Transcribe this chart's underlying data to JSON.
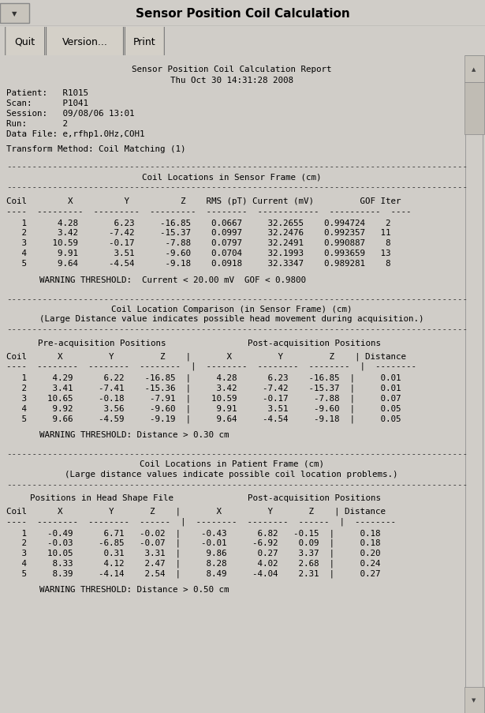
{
  "title": "Sensor Position Coil Calculation",
  "bg_color": "#d0cdc8",
  "content_bg": "#fffff0",
  "report_title": "Sensor Position Coil Calculation Report",
  "report_date": "Thu Oct 30 14:31:28 2008",
  "patient": "R1015",
  "scan": "P1041",
  "session": "09/08/06 13:01",
  "run": "2",
  "data_file": "e,rfhp1.0Hz,COH1",
  "transform_method": "Coil Matching (1)",
  "section1_title": "Coil Locations in Sensor Frame (cm)",
  "coil_data1": [
    [
      "1",
      "4.28",
      "6.23",
      "-16.85",
      "0.0667",
      "32.2655",
      "0.994724",
      "2"
    ],
    [
      "2",
      "3.42",
      "-7.42",
      "-15.37",
      "0.0997",
      "32.2476",
      "0.992357",
      "11"
    ],
    [
      "3",
      "10.59",
      "-0.17",
      "-7.88",
      "0.0797",
      "32.2491",
      "0.990887",
      "8"
    ],
    [
      "4",
      "9.91",
      "3.51",
      "-9.60",
      "0.0704",
      "32.1993",
      "0.993659",
      "13"
    ],
    [
      "5",
      "9.64",
      "-4.54",
      "-9.18",
      "0.0918",
      "32.3347",
      "0.989281",
      "8"
    ]
  ],
  "warning1": "WARNING THRESHOLD:  Current < 20.00 mV  GOF < 0.9800",
  "section2_title": "Coil Location Comparison (in Sensor Frame) (cm)",
  "section2_subtitle": "(Large Distance value indicates possible head movement during acquisition.)",
  "pre_header": "Pre-acquisition Positions",
  "post_header": "Post-acquisition Positions",
  "coil_data2": [
    [
      "1",
      "4.29",
      "6.22",
      "-16.85",
      "4.28",
      "6.23",
      "-16.85",
      "0.01"
    ],
    [
      "2",
      "3.41",
      "-7.41",
      "-15.36",
      "3.42",
      "-7.42",
      "-15.37",
      "0.01"
    ],
    [
      "3",
      "10.65",
      "-0.18",
      "-7.91",
      "10.59",
      "-0.17",
      "-7.88",
      "0.07"
    ],
    [
      "4",
      "9.92",
      "3.56",
      "-9.60",
      "9.91",
      "3.51",
      "-9.60",
      "0.05"
    ],
    [
      "5",
      "9.66",
      "-4.59",
      "-9.19",
      "9.64",
      "-4.54",
      "-9.18",
      "0.05"
    ]
  ],
  "warning2": "WARNING THRESHOLD: Distance > 0.30 cm",
  "section3_title": "Coil Locations in Patient Frame (cm)",
  "section3_subtitle": "(Large distance values indicate possible coil location problems.)",
  "head_header": "Positions in Head Shape File",
  "post_header3": "Post-acquisition Positions",
  "coil_data3": [
    [
      "1",
      "-0.49",
      "6.71",
      "-0.02",
      "-0.43",
      "6.82",
      "-0.15",
      "0.18"
    ],
    [
      "2",
      "-0.03",
      "-6.85",
      "-0.07",
      "-0.01",
      "-6.92",
      "0.09",
      "0.18"
    ],
    [
      "3",
      "10.05",
      "0.31",
      "3.31",
      "9.86",
      "0.27",
      "3.37",
      "0.20"
    ],
    [
      "4",
      "8.33",
      "4.12",
      "2.47",
      "8.28",
      "4.02",
      "2.68",
      "0.24"
    ],
    [
      "5",
      "8.39",
      "-4.14",
      "2.54",
      "8.49",
      "-4.04",
      "2.31",
      "0.27"
    ]
  ],
  "warning3": "WARNING THRESHOLD: Distance > 0.50 cm"
}
